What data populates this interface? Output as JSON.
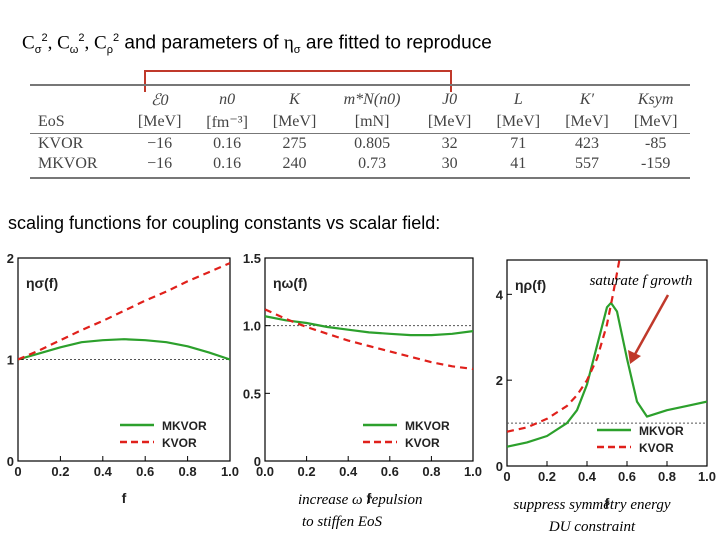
{
  "title": {
    "c_sigma": "C",
    "sub_sigma": "σ",
    "sup1": "2",
    "c_omega": ", C",
    "sub_omega": "ω",
    "sup2": "2",
    "c_rho": ", C",
    "sub_rho": "ρ",
    "sup3": "2",
    "mid": " and parameters of ",
    "eta": "η",
    "eta_sub": "σ",
    "tail": " are fitted to reproduce"
  },
  "table": {
    "header": [
      "",
      "ℰ0",
      "n0",
      "K",
      "m*N(n0)",
      "J0",
      "L",
      "K′",
      "Ksym"
    ],
    "units": [
      "EoS",
      "[MeV]",
      "[fm⁻³]",
      "[MeV]",
      "[mN]",
      "[MeV]",
      "[MeV]",
      "[MeV]",
      "[MeV]"
    ],
    "rows": [
      [
        "KVOR",
        "−16",
        "0.16",
        "275",
        "0.805",
        "32",
        "71",
        "423",
        "-85"
      ],
      [
        "MKVOR",
        "−16",
        "0.16",
        "240",
        "0.73",
        "30",
        "41",
        "557",
        "-159"
      ]
    ]
  },
  "subtitle": "scaling functions for coupling constants vs scalar field:",
  "colors": {
    "mkvor": "#2ca02c",
    "kvor": "#e0201b",
    "dotted": "#555555",
    "arrow": "#c0392b",
    "bracket": "#c0392b"
  },
  "annotations": {
    "saturate": "saturate f growth",
    "increase": "increase ω repulsion",
    "stiffen": "to stiffen EoS",
    "suppress": "suppress symmetry energy",
    "du": "DU constraint"
  },
  "chart_data": [
    {
      "type": "line",
      "ylabel": "ησ(f)",
      "xlabel": "f",
      "xlim": [
        0,
        1.0
      ],
      "ylim": [
        0,
        2
      ],
      "xticks": [
        "0",
        "0.2",
        "0.4",
        "0.6",
        "0.8",
        "1.0"
      ],
      "yticks": [
        "0",
        "1",
        "2"
      ],
      "reference_line": 1,
      "legend": "bottom-right",
      "series": [
        {
          "name": "MKVOR",
          "style": "solid",
          "x": [
            0,
            0.1,
            0.2,
            0.3,
            0.4,
            0.5,
            0.6,
            0.7,
            0.8,
            0.9,
            1.0
          ],
          "y": [
            1.0,
            1.06,
            1.12,
            1.17,
            1.19,
            1.2,
            1.19,
            1.17,
            1.13,
            1.07,
            1.0
          ]
        },
        {
          "name": "KVOR",
          "style": "dashed",
          "x": [
            0,
            0.1,
            0.2,
            0.3,
            0.4,
            0.5,
            0.6,
            0.7,
            0.8,
            0.9,
            1.0
          ],
          "y": [
            1.0,
            1.09,
            1.19,
            1.29,
            1.38,
            1.48,
            1.58,
            1.67,
            1.77,
            1.86,
            1.95
          ]
        }
      ]
    },
    {
      "type": "line",
      "ylabel": "ηω(f)",
      "xlabel": "f",
      "xlim": [
        0,
        1.0
      ],
      "ylim": [
        0,
        1.5
      ],
      "xticks": [
        "0.0",
        "0.2",
        "0.4",
        "0.6",
        "0.8",
        "1.0"
      ],
      "yticks": [
        "0",
        "0.5",
        "1.0",
        "1.5"
      ],
      "reference_line": 1,
      "legend": "bottom-right",
      "series": [
        {
          "name": "MKVOR",
          "style": "solid",
          "x": [
            0,
            0.1,
            0.2,
            0.3,
            0.4,
            0.5,
            0.6,
            0.7,
            0.8,
            0.9,
            1.0
          ],
          "y": [
            1.07,
            1.04,
            1.02,
            0.99,
            0.97,
            0.95,
            0.94,
            0.93,
            0.93,
            0.94,
            0.96
          ]
        },
        {
          "name": "KVOR",
          "style": "dashed",
          "x": [
            0,
            0.1,
            0.2,
            0.3,
            0.4,
            0.5,
            0.6,
            0.7,
            0.8,
            0.9,
            1.0
          ],
          "y": [
            1.12,
            1.05,
            0.99,
            0.94,
            0.89,
            0.85,
            0.81,
            0.77,
            0.73,
            0.7,
            0.68
          ]
        }
      ]
    },
    {
      "type": "line",
      "ylabel": "ηρ(f)",
      "xlabel": "f",
      "xlim": [
        0,
        1.0
      ],
      "ylim": [
        0,
        4.8
      ],
      "xticks": [
        "0",
        "0.2",
        "0.4",
        "0.6",
        "0.8",
        "1.0"
      ],
      "yticks": [
        "0",
        "2",
        "4"
      ],
      "reference_line": 1,
      "legend": "bottom-right",
      "series": [
        {
          "name": "MKVOR",
          "style": "solid",
          "x": [
            0,
            0.1,
            0.2,
            0.3,
            0.35,
            0.4,
            0.45,
            0.5,
            0.52,
            0.55,
            0.6,
            0.65,
            0.7,
            0.8,
            0.9,
            1.0
          ],
          "y": [
            0.45,
            0.55,
            0.7,
            1.0,
            1.3,
            1.9,
            2.8,
            3.7,
            3.8,
            3.6,
            2.5,
            1.5,
            1.15,
            1.3,
            1.4,
            1.5
          ]
        },
        {
          "name": "KVOR",
          "style": "dashed",
          "x": [
            0,
            0.1,
            0.2,
            0.3,
            0.35,
            0.4,
            0.45,
            0.5,
            0.53,
            0.55,
            0.57
          ],
          "y": [
            0.8,
            0.9,
            1.1,
            1.4,
            1.65,
            2.0,
            2.5,
            3.3,
            4.0,
            4.5,
            5.0
          ]
        }
      ]
    }
  ]
}
